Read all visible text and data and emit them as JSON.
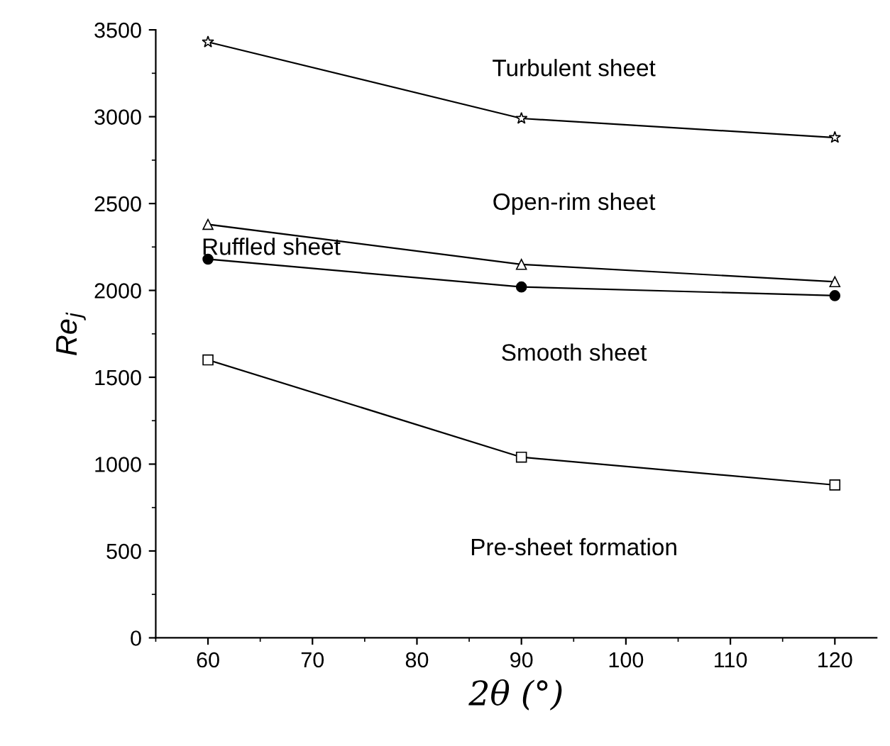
{
  "chart_data": {
    "type": "line",
    "xlabel": "2θ (°)",
    "ylabel": "Re$_{j}$",
    "x": [
      60,
      90,
      120
    ],
    "series": [
      {
        "color": "#000000",
        "marker": "star",
        "values": [
          3430,
          2990,
          2880
        ]
      },
      {
        "color": "#000000",
        "marker": "triangle",
        "values": [
          2380,
          2150,
          2050
        ]
      },
      {
        "color": "#000000",
        "marker": "circle",
        "values": [
          2180,
          2020,
          1970
        ]
      },
      {
        "color": "#000000",
        "marker": "square",
        "values": [
          1600,
          1040,
          880
        ]
      }
    ],
    "annotations": [
      "Turbulent sheet",
      "Open-rim sheet",
      "Ruffled sheet",
      "Smooth sheet",
      "Pre-sheet formation"
    ],
    "xlim": [
      55,
      124
    ],
    "xticks": [
      60,
      70,
      80,
      90,
      100,
      110,
      120
    ],
    "ylim": [
      0,
      3500
    ],
    "yticks": [
      0,
      500,
      1000,
      1500,
      2000,
      2500,
      3000,
      3500
    ],
    "grid": false,
    "legend": false,
    "line_style": "solid"
  }
}
